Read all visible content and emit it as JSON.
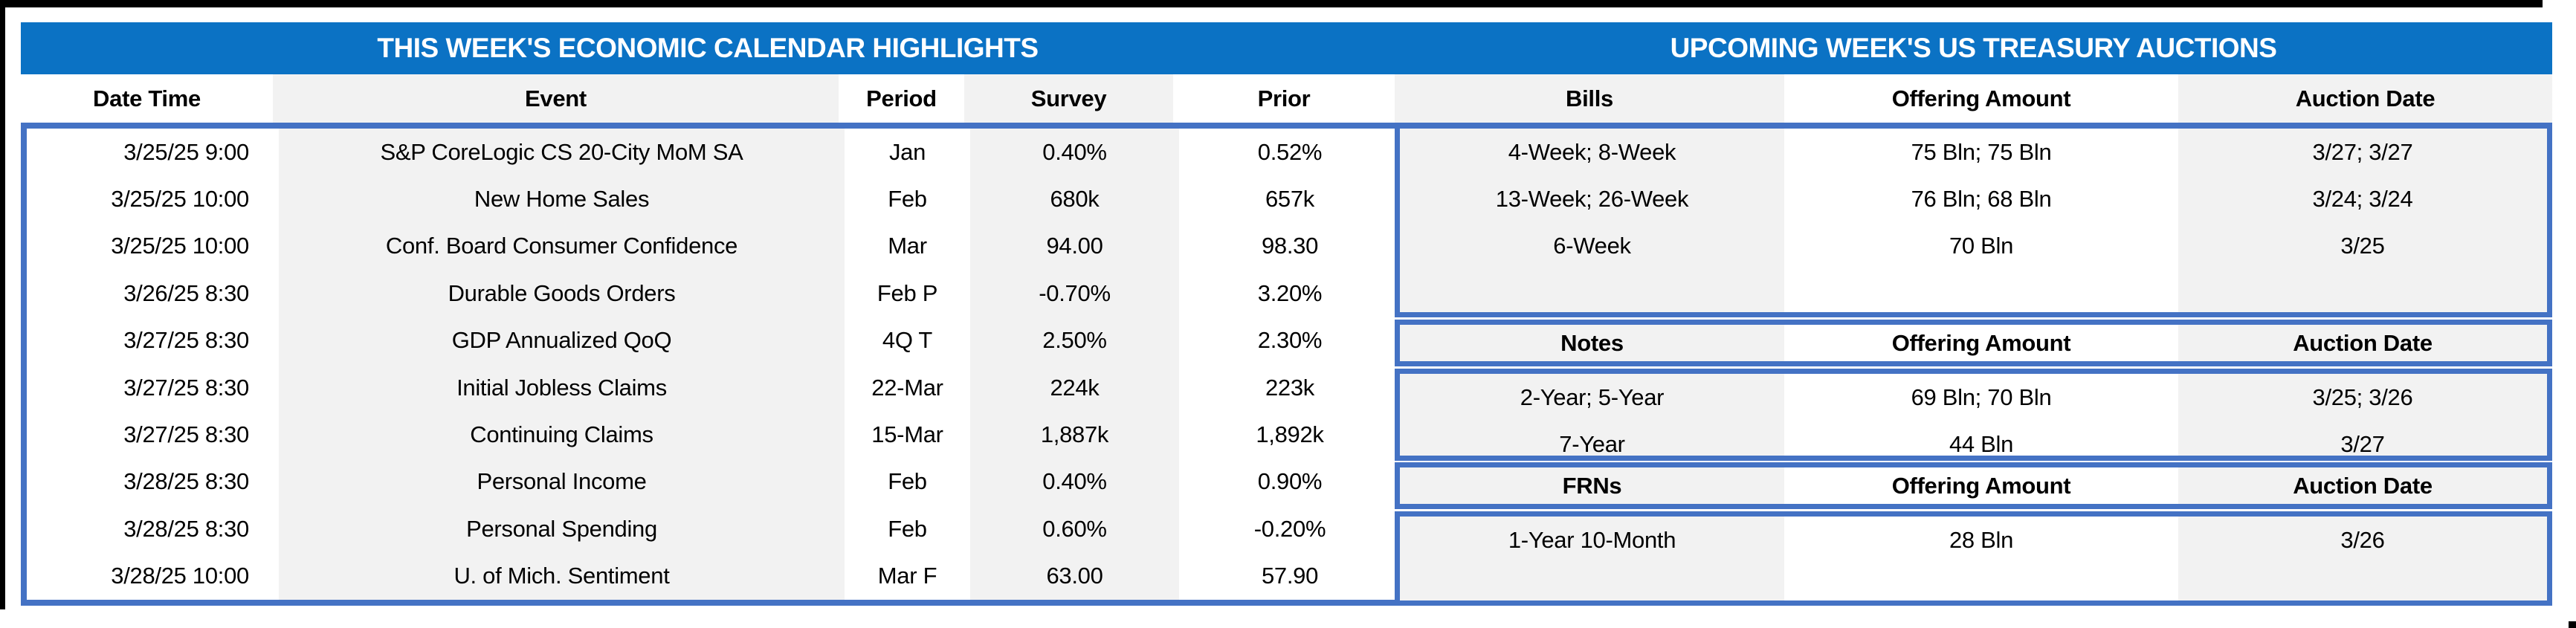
{
  "colors": {
    "title_bar": "#0b72c4",
    "border_blue": "#4472c4",
    "stripe_gray": "#f2f2f2",
    "title_text": "#ffffff",
    "text": "#000000",
    "frame_black": "#000000",
    "background": "#ffffff"
  },
  "left_table": {
    "title": "THIS WEEK'S ECONOMIC CALENDAR HIGHLIGHTS",
    "columns": [
      "Date Time",
      "Event",
      "Period",
      "Survey",
      "Prior"
    ],
    "rows": [
      [
        "3/25/25 9:00",
        "S&P CoreLogic CS 20-City MoM SA",
        "Jan",
        "0.40%",
        "0.52%"
      ],
      [
        "3/25/25 10:00",
        "New Home Sales",
        "Feb",
        "680k",
        "657k"
      ],
      [
        "3/25/25 10:00",
        "Conf. Board Consumer Confidence",
        "Mar",
        "94.00",
        "98.30"
      ],
      [
        "3/26/25 8:30",
        "Durable Goods Orders",
        "Feb P",
        "-0.70%",
        "3.20%"
      ],
      [
        "3/27/25 8:30",
        "GDP Annualized QoQ",
        "4Q T",
        "2.50%",
        "2.30%"
      ],
      [
        "3/27/25 8:30",
        "Initial Jobless Claims",
        "22-Mar",
        "224k",
        "223k"
      ],
      [
        "3/27/25 8:30",
        "Continuing Claims",
        "15-Mar",
        "1,887k",
        "1,892k"
      ],
      [
        "3/28/25 8:30",
        "Personal Income",
        "Feb",
        "0.40%",
        "0.90%"
      ],
      [
        "3/28/25 8:30",
        "Personal Spending",
        "Feb",
        "0.60%",
        "-0.20%"
      ],
      [
        "3/28/25 10:00",
        "U. of Mich. Sentiment",
        "Mar F",
        "63.00",
        "57.90"
      ]
    ]
  },
  "right_table": {
    "title": "UPCOMING WEEK'S US TREASURY AUCTIONS",
    "bills": {
      "columns": [
        "Bills",
        "Offering Amount",
        "Auction Date"
      ],
      "rows": [
        [
          "4-Week; 8-Week",
          "75 Bln; 75 Bln",
          "3/27; 3/27"
        ],
        [
          "13-Week; 26-Week",
          "76 Bln; 68 Bln",
          "3/24; 3/24"
        ],
        [
          "6-Week",
          "70 Bln",
          "3/25"
        ]
      ]
    },
    "notes": {
      "columns": [
        "Notes",
        "Offering Amount",
        "Auction Date"
      ],
      "rows": [
        [
          "2-Year; 5-Year",
          "69 Bln; 70 Bln",
          "3/25; 3/26"
        ],
        [
          "7-Year",
          "44 Bln",
          "3/27"
        ]
      ]
    },
    "frns": {
      "columns": [
        "FRNs",
        "Offering Amount",
        "Auction Date"
      ],
      "rows": [
        [
          "1-Year 10-Month",
          "28 Bln",
          "3/26"
        ]
      ]
    }
  }
}
